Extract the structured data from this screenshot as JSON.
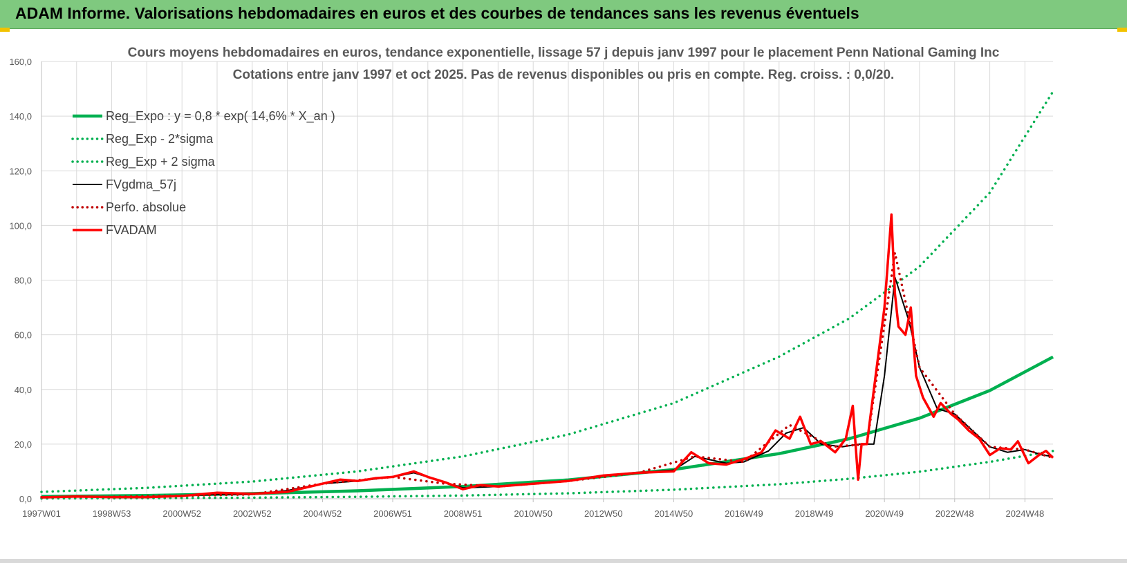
{
  "banner": {
    "title": "ADAM Informe. Valorisations hebdomadaires en euros et des courbes de tendances sans les revenus éventuels"
  },
  "colors": {
    "banner": "#7fc97f",
    "trend": "#00b050",
    "smooth": "#000000",
    "price": "#ff0000",
    "perf": "#c00000",
    "grid": "#d9d9d9"
  },
  "chart_data": {
    "type": "line",
    "title": "Cours moyens hebdomadaires en euros, tendance exponentielle, lissage 57 j depuis janv 1997  pour le placement Penn National Gaming Inc",
    "subtitle": "Cotations entre janv 1997 et oct 2025. Pas de revenus disponibles ou pris en compte. Reg. croiss. : 0,0/20.",
    "xlabel": "",
    "ylabel": "",
    "x_range": [
      1997.0,
      2025.8
    ],
    "ylim": [
      0,
      160
    ],
    "yticks": [
      "0,0",
      "20,0",
      "40,0",
      "60,0",
      "80,0",
      "100,0",
      "120,0",
      "140,0",
      "160,0"
    ],
    "xticks": [
      {
        "label": "1997W01",
        "x": 1997.0
      },
      {
        "label": "1998W53",
        "x": 1999.0
      },
      {
        "label": "2000W52",
        "x": 2001.0
      },
      {
        "label": "2002W52",
        "x": 2003.0
      },
      {
        "label": "2004W52",
        "x": 2005.0
      },
      {
        "label": "2006W51",
        "x": 2007.0
      },
      {
        "label": "2008W51",
        "x": 2009.0
      },
      {
        "label": "2010W50",
        "x": 2011.0
      },
      {
        "label": "2012W50",
        "x": 2013.0
      },
      {
        "label": "2014W50",
        "x": 2015.0
      },
      {
        "label": "2016W49",
        "x": 2017.0
      },
      {
        "label": "2018W49",
        "x": 2019.0
      },
      {
        "label": "2020W49",
        "x": 2021.0
      },
      {
        "label": "2022W48",
        "x": 2023.0
      },
      {
        "label": "2024W48",
        "x": 2025.0
      }
    ],
    "grid": true,
    "legend_position": "top-left",
    "series": [
      {
        "name": "Reg_Expo : y = 0,8 * exp( 14,6% *  X_an )",
        "style": "solid-thick",
        "color": "#00b050",
        "x": [
          1997.0,
          2000.0,
          2003.0,
          2006.0,
          2009.0,
          2012.0,
          2015.0,
          2018.0,
          2020.0,
          2022.0,
          2024.0,
          2025.8
        ],
        "y": [
          0.8,
          1.2,
          1.9,
          2.9,
          4.5,
          6.9,
          10.7,
          16.5,
          22.0,
          29.5,
          39.6,
          51.9
        ]
      },
      {
        "name": "Reg_Exp - 2*sigma",
        "style": "dotted",
        "color": "#00b050",
        "x": [
          1997.0,
          2000.0,
          2003.0,
          2006.0,
          2009.0,
          2012.0,
          2015.0,
          2018.0,
          2020.0,
          2022.0,
          2024.0,
          2025.8
        ],
        "y": [
          0.1,
          0.2,
          0.4,
          0.7,
          1.2,
          2.0,
          3.3,
          5.3,
          7.3,
          9.9,
          13.5,
          17.5
        ]
      },
      {
        "name": "Reg_Exp + 2 sigma",
        "style": "dotted",
        "color": "#00b050",
        "x": [
          1997.0,
          2000.0,
          2003.0,
          2006.0,
          2009.0,
          2012.0,
          2015.0,
          2018.0,
          2020.0,
          2022.0,
          2024.0,
          2025.8
        ],
        "y": [
          2.5,
          4.0,
          6.3,
          10.0,
          15.5,
          23.5,
          35.0,
          52.0,
          66.0,
          85.0,
          112.0,
          149.0
        ]
      },
      {
        "name": "FVgdma_57j",
        "style": "solid",
        "color": "#000000",
        "x": [
          1997.0,
          1998.0,
          1999.0,
          2000.0,
          2001.0,
          2002.0,
          2003.0,
          2004.0,
          2005.0,
          2006.0,
          2007.0,
          2007.6,
          2008.5,
          2009.0,
          2010.0,
          2011.0,
          2012.0,
          2013.0,
          2014.0,
          2015.0,
          2015.6,
          2016.5,
          2017.0,
          2017.7,
          2018.2,
          2018.7,
          2019.2,
          2019.8,
          2020.3,
          2020.7,
          2021.0,
          2021.3,
          2021.7,
          2022.0,
          2022.5,
          2023.0,
          2023.5,
          2024.0,
          2024.5,
          2025.0,
          2025.5,
          2025.8
        ],
        "y": [
          0.5,
          0.8,
          0.7,
          0.6,
          1.1,
          1.6,
          1.6,
          3.0,
          5.5,
          6.5,
          8.0,
          9.5,
          6.0,
          4.0,
          4.5,
          5.5,
          6.5,
          8.5,
          9.5,
          10.5,
          15.5,
          13.0,
          13.5,
          17.5,
          24.0,
          26.0,
          20.0,
          19.0,
          20.0,
          20.0,
          45.0,
          81.0,
          65.0,
          48.0,
          33.0,
          31.0,
          25.0,
          19.0,
          17.0,
          18.0,
          16.0,
          15.5
        ]
      },
      {
        "name": "Perfo. absolue",
        "style": "dotted",
        "color": "#c00000",
        "x": [
          1997.0,
          1999.0,
          2001.0,
          2003.0,
          2005.0,
          2007.0,
          2008.5,
          2010.0,
          2012.0,
          2014.0,
          2015.6,
          2017.0,
          2018.3,
          2019.5,
          2020.5,
          2021.3,
          2022.0,
          2023.0,
          2024.0,
          2025.0,
          2025.8
        ],
        "y": [
          0.6,
          0.7,
          1.1,
          1.6,
          5.5,
          8.0,
          5.5,
          4.5,
          6.5,
          9.5,
          15.5,
          13.5,
          27.0,
          19.0,
          20.0,
          90.0,
          48.0,
          31.0,
          19.0,
          18.0,
          15.0
        ]
      },
      {
        "name": "FVADAM",
        "style": "solid-thick",
        "color": "#ff0000",
        "x": [
          1997.0,
          1998.0,
          1999.0,
          2000.0,
          2001.0,
          2002.0,
          2003.0,
          2004.0,
          2005.0,
          2005.5,
          2006.0,
          2006.5,
          2007.0,
          2007.6,
          2008.0,
          2008.5,
          2009.0,
          2009.5,
          2010.0,
          2011.0,
          2012.0,
          2013.0,
          2014.0,
          2015.0,
          2015.5,
          2016.0,
          2016.5,
          2017.0,
          2017.5,
          2017.9,
          2018.3,
          2018.6,
          2018.9,
          2019.2,
          2019.6,
          2019.9,
          2020.1,
          2020.25,
          2020.35,
          2020.5,
          2020.8,
          2021.0,
          2021.2,
          2021.3,
          2021.4,
          2021.6,
          2021.75,
          2021.9,
          2022.1,
          2022.4,
          2022.6,
          2022.9,
          2023.1,
          2023.4,
          2023.7,
          2024.0,
          2024.3,
          2024.6,
          2024.8,
          2025.1,
          2025.4,
          2025.6,
          2025.8
        ],
        "y": [
          0.5,
          0.8,
          0.6,
          0.6,
          1.0,
          2.2,
          1.8,
          2.5,
          5.5,
          7.0,
          6.5,
          7.5,
          8.0,
          10.0,
          8.0,
          6.0,
          3.5,
          5.0,
          4.5,
          5.5,
          6.5,
          8.5,
          9.5,
          10.0,
          17.0,
          13.0,
          12.5,
          14.5,
          17.0,
          25.0,
          22.0,
          30.0,
          20.0,
          21.0,
          17.0,
          22.0,
          34.0,
          7.0,
          20.0,
          20.0,
          50.0,
          70.0,
          104.0,
          75.0,
          63.0,
          60.0,
          70.0,
          45.0,
          37.0,
          30.0,
          35.0,
          31.0,
          29.0,
          25.0,
          22.0,
          16.0,
          18.5,
          18.0,
          21.0,
          13.0,
          16.0,
          17.5,
          15.0
        ]
      }
    ]
  }
}
